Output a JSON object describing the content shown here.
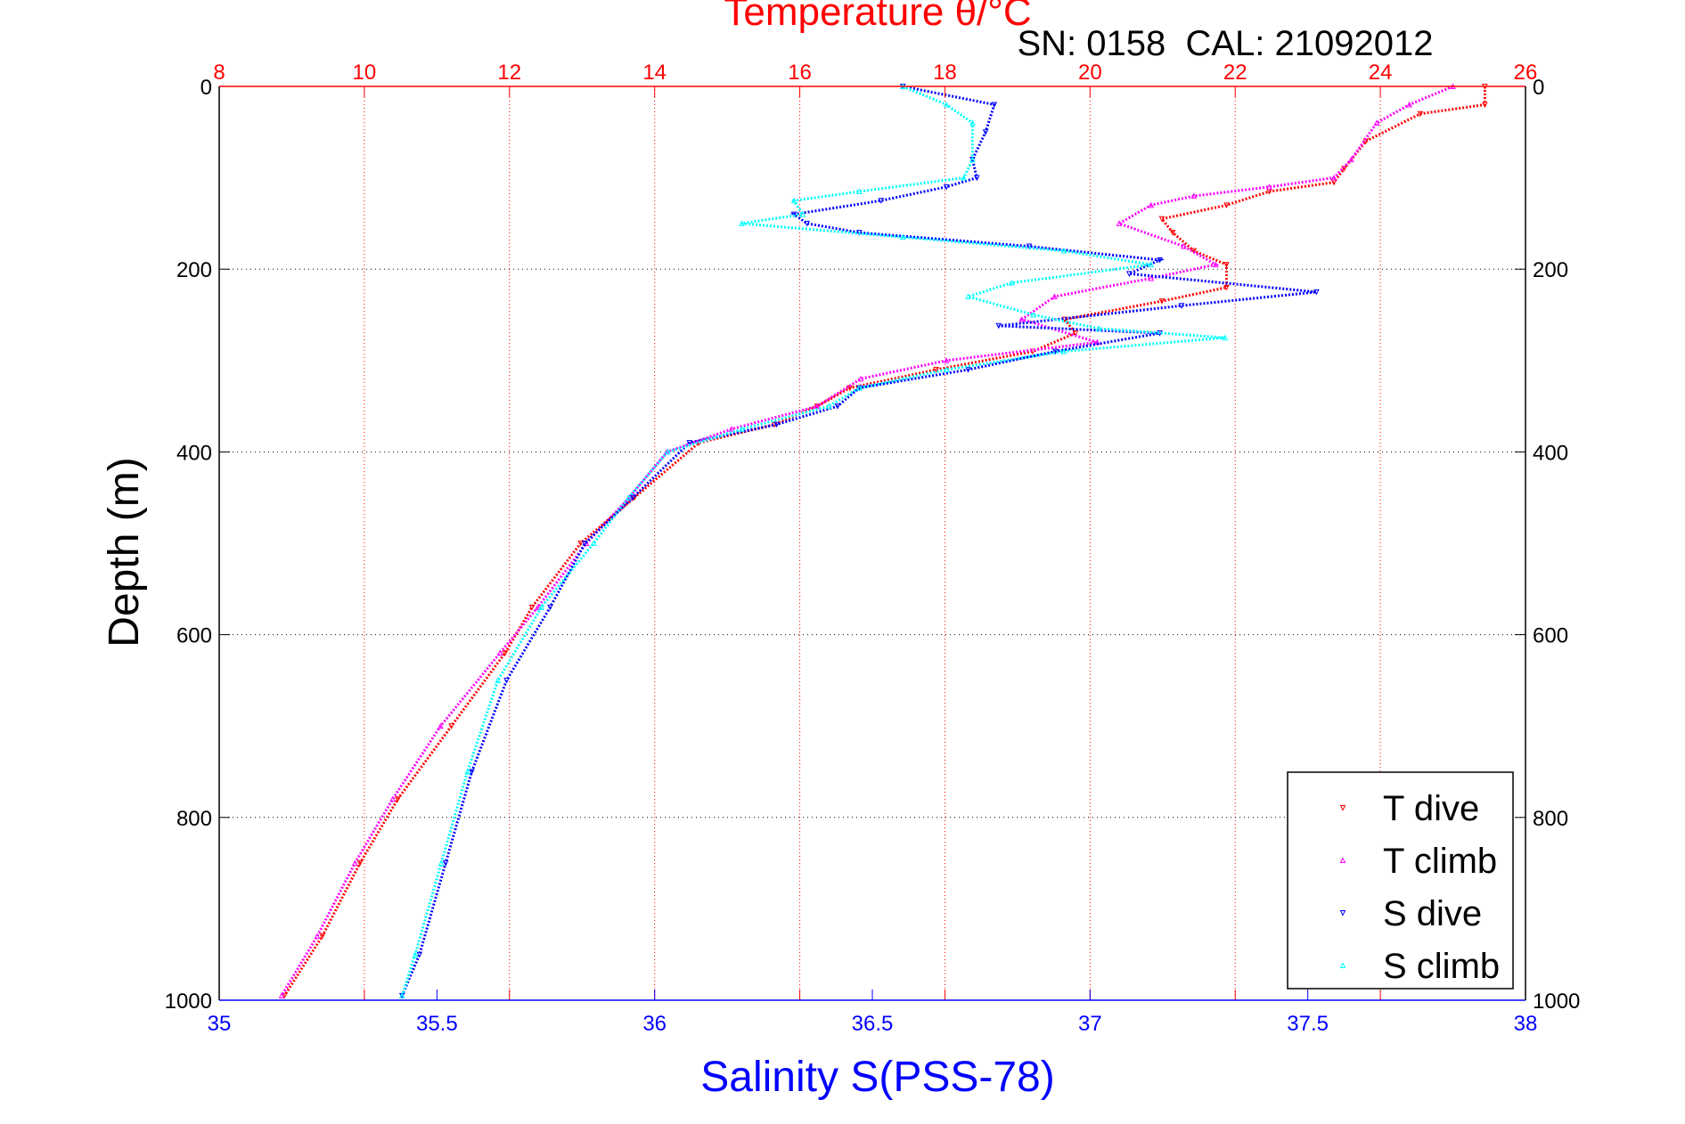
{
  "chart_data": {
    "type": "scatter",
    "title": "Temperature θ/°C",
    "subtitle": "SN: 0158  CAL: 21092012",
    "xlabel": "Salinity S(PSS-78)",
    "ylabel": "Depth (m)",
    "x_bottom": {
      "label": "Salinity S(PSS-78)",
      "range": [
        35,
        38
      ],
      "ticks": [
        "35",
        "35.5",
        "36",
        "36.5",
        "37",
        "37.5",
        "38"
      ],
      "color": "#0000ff"
    },
    "x_top": {
      "label": "Temperature θ/°C",
      "range": [
        8,
        26
      ],
      "ticks": [
        "8",
        "10",
        "12",
        "14",
        "16",
        "18",
        "20",
        "22",
        "24",
        "26"
      ],
      "color": "#ff0000"
    },
    "y": {
      "label": "Depth (m)",
      "range": [
        0,
        1000
      ],
      "reversed": true,
      "ticks": [
        "0",
        "200",
        "400",
        "600",
        "800",
        "1000"
      ]
    },
    "grid": true,
    "legend_position": "bottom-right",
    "series": [
      {
        "name": "T dive",
        "axis": "top",
        "color": "#ff0000",
        "marker": "triangle-down",
        "depth": [
          0,
          20,
          30,
          60,
          90,
          105,
          115,
          130,
          145,
          160,
          180,
          195,
          220,
          235,
          255,
          270,
          290,
          310,
          330,
          350,
          370,
          390,
          450,
          500,
          570,
          620,
          700,
          780,
          850,
          930,
          995
        ],
        "values": [
          25.44,
          25.44,
          24.55,
          23.8,
          23.5,
          23.36,
          22.47,
          21.88,
          20.99,
          21.14,
          21.43,
          21.88,
          21.88,
          20.99,
          19.65,
          19.8,
          19.21,
          17.88,
          16.69,
          16.24,
          15.65,
          14.61,
          13.72,
          12.98,
          12.31,
          11.94,
          11.2,
          10.46,
          9.94,
          9.42,
          8.9
        ]
      },
      {
        "name": "T climb",
        "axis": "top",
        "color": "#ff00ff",
        "marker": "triangle-up",
        "depth": [
          0,
          20,
          40,
          80,
          100,
          110,
          120,
          130,
          150,
          175,
          195,
          210,
          230,
          255,
          280,
          300,
          320,
          350,
          375,
          400,
          450,
          500,
          570,
          620,
          700,
          780,
          850,
          930,
          995
        ],
        "values": [
          25.0,
          24.4,
          23.95,
          23.6,
          23.36,
          22.47,
          21.43,
          20.84,
          20.4,
          21.29,
          21.73,
          20.84,
          19.51,
          19.06,
          20.1,
          18.02,
          16.84,
          16.24,
          15.06,
          14.17,
          13.65,
          13.06,
          12.39,
          11.87,
          11.05,
          10.39,
          9.87,
          9.35,
          8.86
        ]
      },
      {
        "name": "S dive",
        "axis": "bottom",
        "color": "#0000ff",
        "marker": "triangle-down",
        "depth": [
          0,
          20,
          50,
          80,
          100,
          110,
          125,
          140,
          150,
          160,
          175,
          190,
          205,
          225,
          240,
          262,
          270,
          290,
          310,
          330,
          350,
          370,
          390,
          450,
          500,
          570,
          650,
          750,
          850,
          950,
          995
        ],
        "values": [
          36.57,
          36.78,
          36.76,
          36.73,
          36.74,
          36.67,
          36.52,
          36.32,
          36.35,
          36.47,
          36.86,
          37.16,
          37.09,
          37.52,
          37.21,
          36.79,
          37.16,
          36.92,
          36.72,
          36.47,
          36.42,
          36.28,
          36.08,
          35.95,
          35.84,
          35.76,
          35.66,
          35.58,
          35.52,
          35.46,
          35.42
        ]
      },
      {
        "name": "S climb",
        "axis": "bottom",
        "color": "#00ffff",
        "marker": "triangle-up",
        "depth": [
          0,
          20,
          40,
          80,
          100,
          115,
          125,
          140,
          150,
          165,
          180,
          195,
          215,
          230,
          250,
          265,
          275,
          290,
          310,
          330,
          350,
          375,
          400,
          450,
          500,
          570,
          650,
          750,
          850,
          950,
          995
        ],
        "values": [
          36.57,
          36.67,
          36.73,
          36.73,
          36.71,
          36.47,
          36.32,
          36.34,
          36.2,
          36.57,
          36.94,
          37.14,
          36.82,
          36.72,
          36.87,
          37.02,
          37.31,
          36.94,
          36.67,
          36.47,
          36.4,
          36.2,
          36.03,
          35.94,
          35.86,
          35.74,
          35.64,
          35.57,
          35.51,
          35.45,
          35.42
        ]
      }
    ]
  }
}
